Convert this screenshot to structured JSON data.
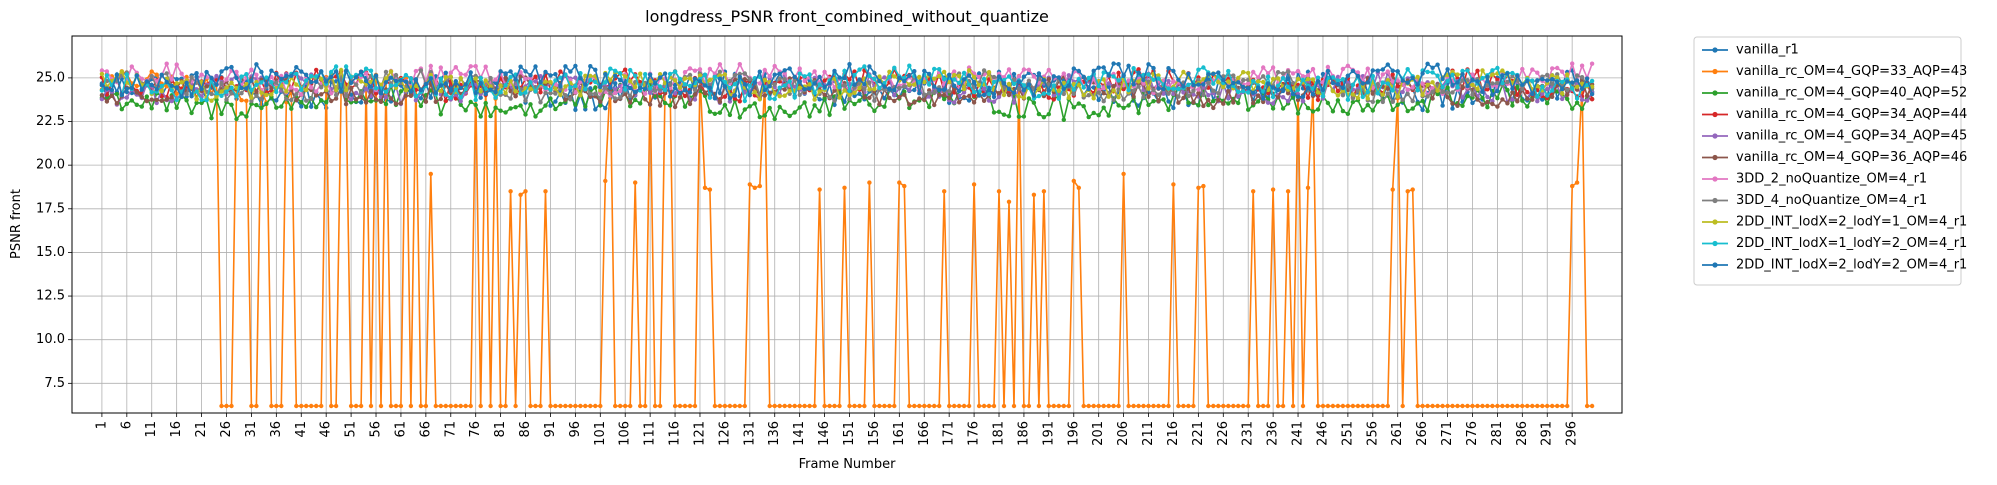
{
  "chart_data": {
    "type": "line",
    "title": "longdress_PSNR front_combined_without_quantize",
    "xlabel": "Frame Number",
    "ylabel": "PSNR front",
    "xlim": [
      1,
      300
    ],
    "ylim": [
      5.8,
      27.4
    ],
    "grid": true,
    "legend_position": "outside-right",
    "x_tick_labels": [
      "1",
      "6",
      "11",
      "16",
      "21",
      "26",
      "31",
      "36",
      "41",
      "46",
      "51",
      "56",
      "61",
      "66",
      "71",
      "76",
      "81",
      "86",
      "91",
      "96",
      "101",
      "106",
      "111",
      "116",
      "121",
      "126",
      "131",
      "136",
      "141",
      "146",
      "151",
      "156",
      "161",
      "166",
      "171",
      "176",
      "181",
      "186",
      "191",
      "196",
      "201",
      "206",
      "211",
      "216",
      "221",
      "226",
      "231",
      "236",
      "241",
      "246",
      "251",
      "256",
      "261",
      "266",
      "271",
      "276",
      "281",
      "286",
      "291",
      "296"
    ],
    "y_tick_labels": [
      "7.5",
      "10.0",
      "12.5",
      "15.0",
      "17.5",
      "20.0",
      "22.5",
      "25.0"
    ],
    "y_ticks": [
      7.5,
      10.0,
      12.5,
      15.0,
      17.5,
      20.0,
      22.5,
      25.0
    ],
    "x": {
      "start": 1,
      "end": 300,
      "step": 1
    },
    "series": [
      {
        "name": "vanilla_r1",
        "color": "#1f77b4",
        "base": 24.3,
        "amp": 0.8
      },
      {
        "name": "vanilla_rc_OM=4_GQP=33_AQP=43",
        "color": "#ff7f0e",
        "base": 24.5,
        "amp": 0.6,
        "low_value": 6.2,
        "low_frames": [
          25,
          26,
          27,
          31,
          32,
          35,
          36,
          37,
          40,
          41,
          42,
          43,
          44,
          45,
          47,
          48,
          51,
          52,
          53,
          55,
          57,
          59,
          60,
          61,
          63,
          65,
          66,
          68,
          69,
          70,
          71,
          72,
          73,
          74,
          75,
          77,
          79,
          81,
          82,
          84,
          87,
          88,
          89,
          91,
          92,
          93,
          94,
          95,
          96,
          97,
          98,
          99,
          100,
          101,
          104,
          105,
          106,
          107,
          109,
          110,
          112,
          113,
          116,
          117,
          118,
          119,
          120,
          124,
          125,
          126,
          127,
          128,
          129,
          130,
          135,
          136,
          137,
          138,
          139,
          140,
          141,
          142,
          143,
          144,
          146,
          147,
          148,
          149,
          151,
          152,
          153,
          154,
          156,
          157,
          158,
          159,
          160,
          163,
          164,
          165,
          166,
          167,
          168,
          169,
          171,
          172,
          173,
          174,
          175,
          177,
          178,
          179,
          180,
          182,
          184,
          186,
          187,
          189,
          191,
          192,
          193,
          194,
          195,
          198,
          199,
          200,
          201,
          202,
          203,
          204,
          205,
          207,
          208,
          209,
          210,
          211,
          212,
          213,
          214,
          215,
          217,
          218,
          219,
          220,
          223,
          224,
          225,
          226,
          227,
          228,
          229,
          230,
          231,
          233,
          234,
          235,
          237,
          238,
          240,
          242,
          245,
          246,
          247,
          248,
          249,
          250,
          251,
          252,
          253,
          254,
          255,
          256,
          257,
          258,
          259,
          262,
          265,
          266,
          267,
          268,
          269,
          270,
          271,
          272,
          273,
          274,
          275,
          276,
          277,
          278,
          279,
          280,
          281,
          282,
          283,
          284,
          285,
          286,
          287,
          288,
          289,
          290,
          291,
          292,
          293,
          294,
          295,
          299,
          300
        ],
        "mid_points": [
          [
            67,
            19.5
          ],
          [
            81,
            19.0
          ],
          [
            83,
            18.5
          ],
          [
            85,
            18.3
          ],
          [
            86,
            18.5
          ],
          [
            90,
            18.5
          ],
          [
            102,
            19.1
          ],
          [
            108,
            19.0
          ],
          [
            122,
            18.7
          ],
          [
            123,
            18.6
          ],
          [
            131,
            18.9
          ],
          [
            132,
            18.7
          ],
          [
            133,
            18.8
          ],
          [
            145,
            18.6
          ],
          [
            150,
            18.7
          ],
          [
            155,
            19.0
          ],
          [
            161,
            19.0
          ],
          [
            162,
            18.8
          ],
          [
            170,
            18.5
          ],
          [
            176,
            18.9
          ],
          [
            181,
            18.5
          ],
          [
            183,
            17.9
          ],
          [
            188,
            18.3
          ],
          [
            190,
            18.5
          ],
          [
            196,
            19.1
          ],
          [
            197,
            18.7
          ],
          [
            206,
            19.5
          ],
          [
            216,
            18.9
          ],
          [
            221,
            18.7
          ],
          [
            222,
            18.8
          ],
          [
            232,
            18.5
          ],
          [
            236,
            18.6
          ],
          [
            239,
            18.5
          ],
          [
            243,
            18.7
          ],
          [
            260,
            18.6
          ],
          [
            263,
            18.5
          ],
          [
            264,
            18.6
          ],
          [
            296,
            18.8
          ],
          [
            297,
            19.0
          ]
        ]
      },
      {
        "name": "vanilla_rc_OM=4_GQP=40_AQP=52",
        "color": "#2ca02c",
        "base": 23.6,
        "amp": 0.7
      },
      {
        "name": "vanilla_rc_OM=4_GQP=34_AQP=44",
        "color": "#d62728",
        "base": 24.6,
        "amp": 0.6
      },
      {
        "name": "vanilla_rc_OM=4_GQP=34_AQP=45",
        "color": "#9467bd",
        "base": 24.4,
        "amp": 0.6
      },
      {
        "name": "vanilla_rc_OM=4_GQP=36_AQP=46",
        "color": "#8c564b",
        "base": 24.2,
        "amp": 0.6
      },
      {
        "name": "3DD_2_noQuantize_OM=4_r1",
        "color": "#e377c2",
        "base": 24.9,
        "amp": 0.6
      },
      {
        "name": "3DD_4_noQuantize_OM=4_r1",
        "color": "#7f7f7f",
        "base": 24.5,
        "amp": 0.6
      },
      {
        "name": "2DD_INT_lodX=2_lodY=1_OM=4_r1",
        "color": "#bcbd22",
        "base": 24.6,
        "amp": 0.6
      },
      {
        "name": "2DD_INT_lodX=1_lodY=2_OM=4_r1",
        "color": "#17becf",
        "base": 24.7,
        "amp": 0.7
      },
      {
        "name": "2DD_INT_lodX=2_lodY=2_OM=4_r1",
        "color": "#1f77b4",
        "base": 24.8,
        "amp": 0.7
      }
    ]
  }
}
